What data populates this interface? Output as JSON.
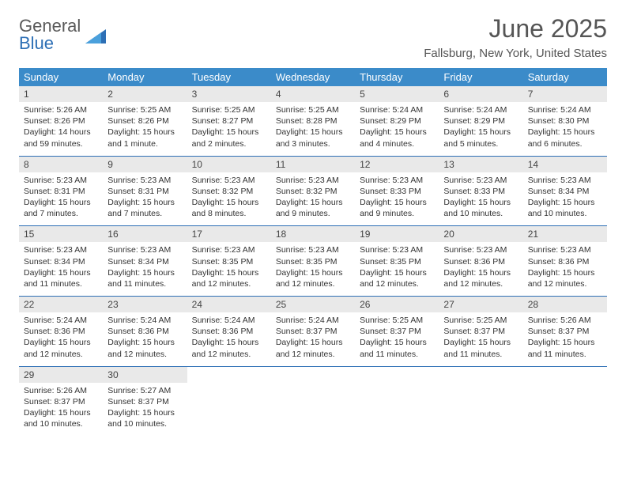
{
  "logo": {
    "word1": "General",
    "word2": "Blue"
  },
  "title": "June 2025",
  "subtitle": "Fallsburg, New York, United States",
  "colors": {
    "header_bg": "#3b8bc9",
    "header_text": "#ffffff",
    "daynum_bg": "#e9e9e9",
    "rule": "#2d6fb5",
    "logo_gray": "#5a5a5a",
    "logo_blue": "#2d6fb5"
  },
  "columns": [
    "Sunday",
    "Monday",
    "Tuesday",
    "Wednesday",
    "Thursday",
    "Friday",
    "Saturday"
  ],
  "weeks": [
    [
      {
        "n": "1",
        "sr": "5:26 AM",
        "ss": "8:26 PM",
        "dl": "14 hours and 59 minutes."
      },
      {
        "n": "2",
        "sr": "5:25 AM",
        "ss": "8:26 PM",
        "dl": "15 hours and 1 minute."
      },
      {
        "n": "3",
        "sr": "5:25 AM",
        "ss": "8:27 PM",
        "dl": "15 hours and 2 minutes."
      },
      {
        "n": "4",
        "sr": "5:25 AM",
        "ss": "8:28 PM",
        "dl": "15 hours and 3 minutes."
      },
      {
        "n": "5",
        "sr": "5:24 AM",
        "ss": "8:29 PM",
        "dl": "15 hours and 4 minutes."
      },
      {
        "n": "6",
        "sr": "5:24 AM",
        "ss": "8:29 PM",
        "dl": "15 hours and 5 minutes."
      },
      {
        "n": "7",
        "sr": "5:24 AM",
        "ss": "8:30 PM",
        "dl": "15 hours and 6 minutes."
      }
    ],
    [
      {
        "n": "8",
        "sr": "5:23 AM",
        "ss": "8:31 PM",
        "dl": "15 hours and 7 minutes."
      },
      {
        "n": "9",
        "sr": "5:23 AM",
        "ss": "8:31 PM",
        "dl": "15 hours and 7 minutes."
      },
      {
        "n": "10",
        "sr": "5:23 AM",
        "ss": "8:32 PM",
        "dl": "15 hours and 8 minutes."
      },
      {
        "n": "11",
        "sr": "5:23 AM",
        "ss": "8:32 PM",
        "dl": "15 hours and 9 minutes."
      },
      {
        "n": "12",
        "sr": "5:23 AM",
        "ss": "8:33 PM",
        "dl": "15 hours and 9 minutes."
      },
      {
        "n": "13",
        "sr": "5:23 AM",
        "ss": "8:33 PM",
        "dl": "15 hours and 10 minutes."
      },
      {
        "n": "14",
        "sr": "5:23 AM",
        "ss": "8:34 PM",
        "dl": "15 hours and 10 minutes."
      }
    ],
    [
      {
        "n": "15",
        "sr": "5:23 AM",
        "ss": "8:34 PM",
        "dl": "15 hours and 11 minutes."
      },
      {
        "n": "16",
        "sr": "5:23 AM",
        "ss": "8:34 PM",
        "dl": "15 hours and 11 minutes."
      },
      {
        "n": "17",
        "sr": "5:23 AM",
        "ss": "8:35 PM",
        "dl": "15 hours and 12 minutes."
      },
      {
        "n": "18",
        "sr": "5:23 AM",
        "ss": "8:35 PM",
        "dl": "15 hours and 12 minutes."
      },
      {
        "n": "19",
        "sr": "5:23 AM",
        "ss": "8:35 PM",
        "dl": "15 hours and 12 minutes."
      },
      {
        "n": "20",
        "sr": "5:23 AM",
        "ss": "8:36 PM",
        "dl": "15 hours and 12 minutes."
      },
      {
        "n": "21",
        "sr": "5:23 AM",
        "ss": "8:36 PM",
        "dl": "15 hours and 12 minutes."
      }
    ],
    [
      {
        "n": "22",
        "sr": "5:24 AM",
        "ss": "8:36 PM",
        "dl": "15 hours and 12 minutes."
      },
      {
        "n": "23",
        "sr": "5:24 AM",
        "ss": "8:36 PM",
        "dl": "15 hours and 12 minutes."
      },
      {
        "n": "24",
        "sr": "5:24 AM",
        "ss": "8:36 PM",
        "dl": "15 hours and 12 minutes."
      },
      {
        "n": "25",
        "sr": "5:24 AM",
        "ss": "8:37 PM",
        "dl": "15 hours and 12 minutes."
      },
      {
        "n": "26",
        "sr": "5:25 AM",
        "ss": "8:37 PM",
        "dl": "15 hours and 11 minutes."
      },
      {
        "n": "27",
        "sr": "5:25 AM",
        "ss": "8:37 PM",
        "dl": "15 hours and 11 minutes."
      },
      {
        "n": "28",
        "sr": "5:26 AM",
        "ss": "8:37 PM",
        "dl": "15 hours and 11 minutes."
      }
    ],
    [
      {
        "n": "29",
        "sr": "5:26 AM",
        "ss": "8:37 PM",
        "dl": "15 hours and 10 minutes."
      },
      {
        "n": "30",
        "sr": "5:27 AM",
        "ss": "8:37 PM",
        "dl": "15 hours and 10 minutes."
      },
      null,
      null,
      null,
      null,
      null
    ]
  ],
  "labels": {
    "sunrise": "Sunrise: ",
    "sunset": "Sunset: ",
    "daylight": "Daylight: "
  }
}
